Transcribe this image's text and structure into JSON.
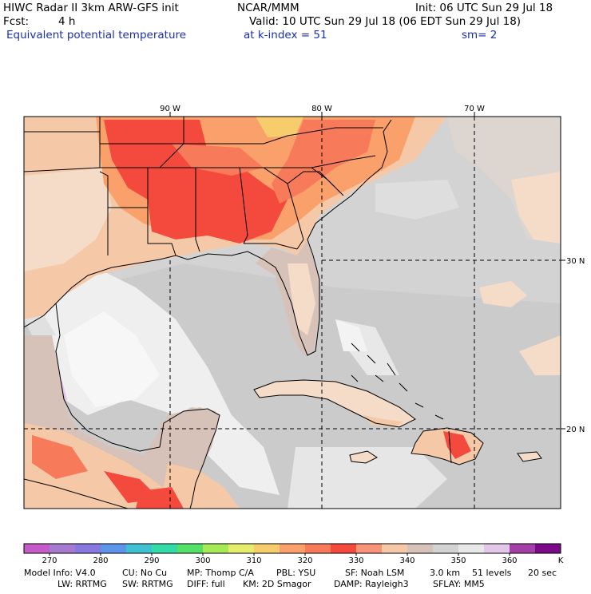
{
  "header": {
    "line1_left": "HIWC Radar II 3km ARW-GFS init",
    "line1_mid": "NCAR/MMM",
    "line1_right": "Init: 06 UTC Sun 29 Jul 18",
    "line2_left_label": "Fcst:",
    "line2_left_value": "4 h",
    "line2_right": "Valid: 10 UTC Sun 29 Jul 18 (06 EDT Sun 29 Jul 18)",
    "line3_left": "Equivalent potential temperature",
    "line3_mid": "at k-index =  51",
    "line3_right": "sm= 2"
  },
  "map": {
    "lon_labels": [
      "90 W",
      "80 W",
      "70 W"
    ],
    "lat_labels": [
      "30 N",
      "20 N"
    ],
    "colors": {
      "hot_red": "#f44a3e",
      "red_orange": "#f77a5a",
      "orange": "#f9a06b",
      "peach": "#f5c9a8",
      "light_peach": "#f4dcc8",
      "tan": "#d6c2b8",
      "light_gray": "#d3d3d3",
      "mid_gray": "#c8c8c8",
      "very_light": "#ececec",
      "lavender": "#e2c7e9",
      "white": "#f8f8f8"
    }
  },
  "colorbar": {
    "colors": [
      "#c55ac9",
      "#a57acf",
      "#8979de",
      "#5f95e8",
      "#3fc1d2",
      "#35dba6",
      "#55e06a",
      "#a6ea57",
      "#e6ed6d",
      "#f6cc6c",
      "#f9a06b",
      "#f77a5a",
      "#f44a3e",
      "#f69378",
      "#f5c9a8",
      "#d6c2b8",
      "#d3d3d3",
      "#e8e8e8",
      "#e2c7e9",
      "#a340a8",
      "#7a0a87"
    ],
    "labels": [
      "270",
      "280",
      "290",
      "300",
      "310",
      "320",
      "330",
      "340",
      "350",
      "360"
    ],
    "unit": "K"
  },
  "footer": {
    "line1": [
      "Model Info: V4.0",
      "CU: No Cu",
      "MP: Thomp C/A",
      "PBL: YSU",
      "SF: Noah LSM",
      "3.0 km",
      "51 levels",
      "20 sec"
    ],
    "line2": [
      "LW: RRTMG",
      "SW: RRTMG",
      "DIFF: full",
      "KM: 2D Smagor",
      "DAMP: Rayleigh3",
      "SFLAY: MM5"
    ]
  }
}
